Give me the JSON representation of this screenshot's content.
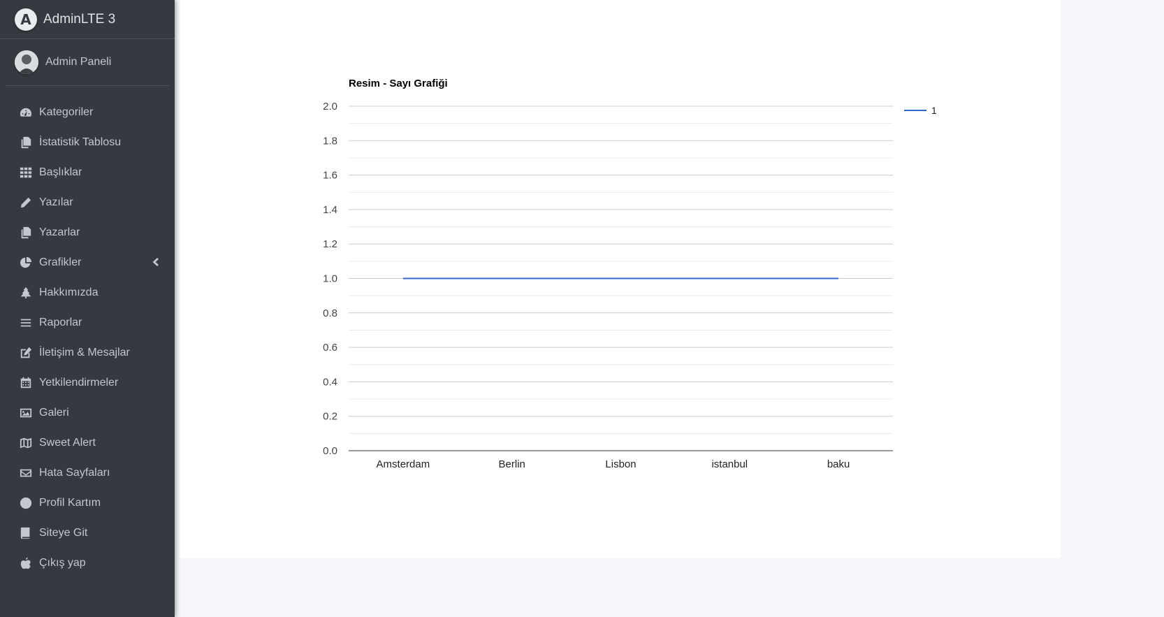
{
  "brand": {
    "name": "AdminLTE 3",
    "logo_letter": "A"
  },
  "user": {
    "name": "Admin Paneli"
  },
  "sidebar": {
    "items": [
      {
        "label": "Kategoriler",
        "icon": "tachometer-icon"
      },
      {
        "label": "İstatistik Tablosu",
        "icon": "copy-icon"
      },
      {
        "label": "Başlıklar",
        "icon": "grid-icon"
      },
      {
        "label": "Yazılar",
        "icon": "pencil-icon"
      },
      {
        "label": "Yazarlar",
        "icon": "copy-icon"
      },
      {
        "label": "Grafikler",
        "icon": "pie-chart-icon",
        "has_submenu": true
      },
      {
        "label": "Hakkımızda",
        "icon": "tree-icon"
      },
      {
        "label": "Raporlar",
        "icon": "bars-icon"
      },
      {
        "label": "İletişim & Mesajlar",
        "icon": "edit-icon"
      },
      {
        "label": "Yetkilendirmeler",
        "icon": "calendar-icon"
      },
      {
        "label": "Galeri",
        "icon": "image-icon"
      },
      {
        "label": "Sweet Alert",
        "icon": "map-icon"
      },
      {
        "label": "Hata Sayfaları",
        "icon": "envelope-icon"
      },
      {
        "label": "Profil Kartım",
        "icon": "circle-icon"
      },
      {
        "label": "Siteye Git",
        "icon": "book-icon"
      },
      {
        "label": "Çıkış yap",
        "icon": "apple-icon"
      }
    ]
  },
  "chart_data": {
    "type": "line",
    "title": "Resim - Sayı Grafiği",
    "categories": [
      "Amsterdam",
      "Berlin",
      "Lisbon",
      "istanbul",
      "baku"
    ],
    "series": [
      {
        "name": "1",
        "values": [
          1,
          1,
          1,
          1,
          1
        ],
        "color": "#3366cc"
      }
    ],
    "ylim": [
      0,
      2
    ],
    "yticks": [
      "0.0",
      "0.2",
      "0.4",
      "0.6",
      "0.8",
      "1.0",
      "1.2",
      "1.4",
      "1.6",
      "1.8",
      "2.0"
    ],
    "grid": true,
    "legend": "right"
  }
}
